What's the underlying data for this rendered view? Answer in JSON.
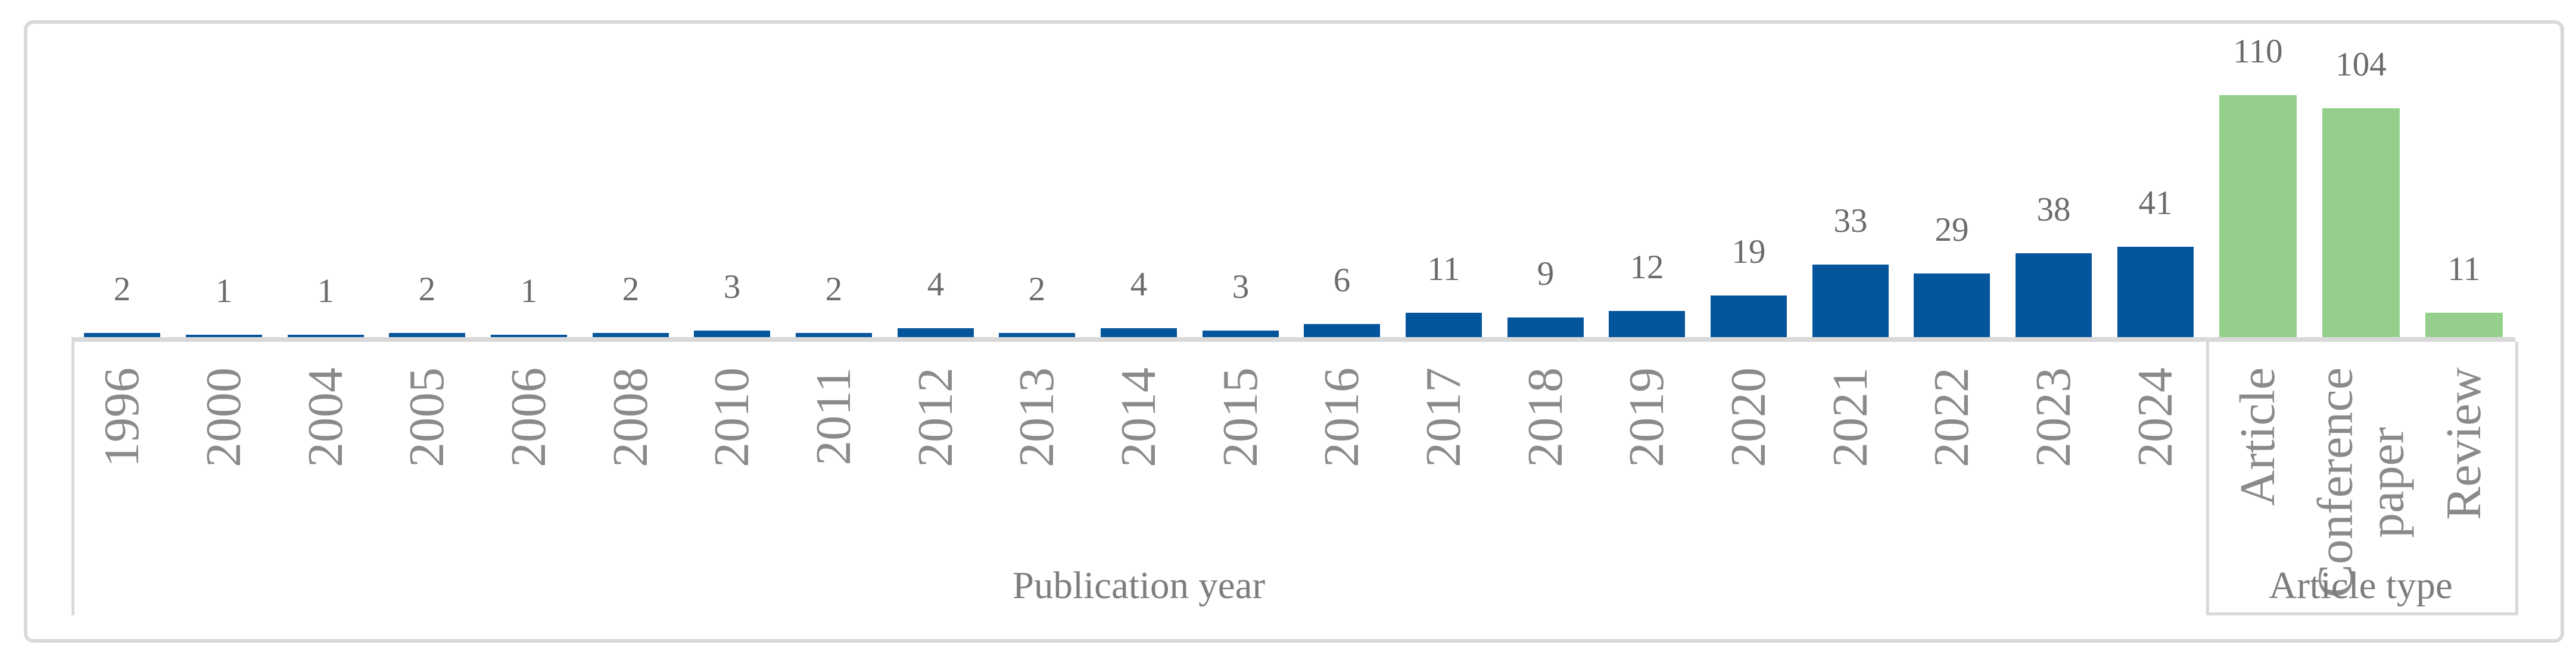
{
  "figure": {
    "background": "#ffffff",
    "frame_color": "#d9d9d9",
    "axis_line_color": "#d9d9d9"
  },
  "chart_data": [
    {
      "type": "bar",
      "panel": "publication-year",
      "title": "Publication year",
      "categories": [
        "1996",
        "2000",
        "2004",
        "2005",
        "2006",
        "2008",
        "2010",
        "2011",
        "2012",
        "2013",
        "2014",
        "2015",
        "2016",
        "2017",
        "2018",
        "2019",
        "2020",
        "2021",
        "2022",
        "2023",
        "2024"
      ],
      "values": [
        2,
        1,
        1,
        2,
        1,
        2,
        3,
        2,
        4,
        2,
        4,
        3,
        6,
        11,
        9,
        12,
        19,
        33,
        29,
        38,
        41
      ],
      "bar_color": "#05559c",
      "tick_color": "#8a8a8a",
      "value_label_color": "#6b6b6b",
      "title_color": "#7d7d7d",
      "tick_rotation_degrees": 90,
      "data_labels_shown": true,
      "y_axis_shown": false,
      "grid": false,
      "ylim": [
        0,
        135
      ]
    },
    {
      "type": "bar",
      "panel": "article-type",
      "title": "Article type",
      "categories": [
        "Article",
        "Conference paper",
        "Review"
      ],
      "values": [
        110,
        104,
        11
      ],
      "bar_color": "#94d08c",
      "tick_color": "#8a8a8a",
      "value_label_color": "#6b6b6b",
      "title_color": "#7d7d7d",
      "tick_rotation_degrees": 90,
      "data_labels_shown": true,
      "y_axis_shown": false,
      "grid": false,
      "ylim": [
        0,
        135
      ]
    }
  ]
}
